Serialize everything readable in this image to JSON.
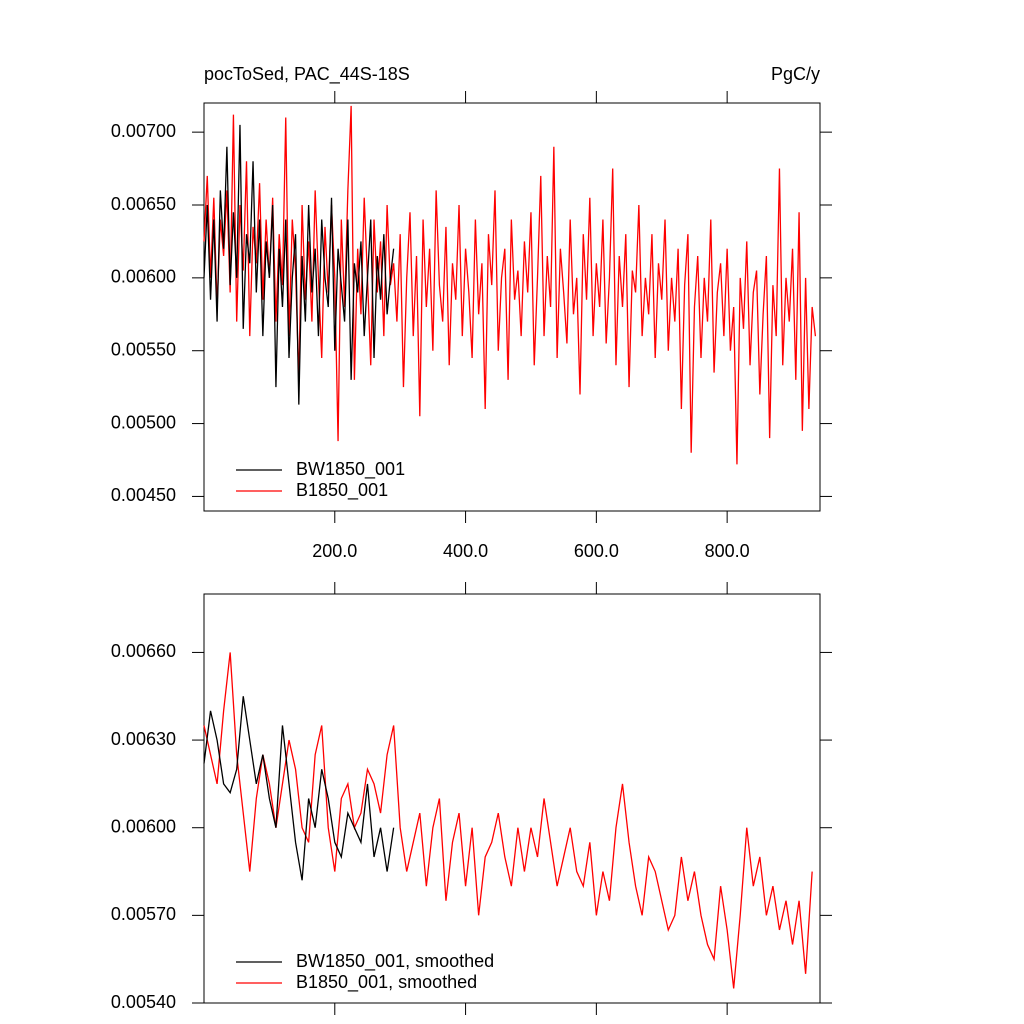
{
  "chart_data": [
    {
      "type": "line",
      "title": "pocToSed, PAC_44S-18S",
      "units": "PgC/y",
      "xlim": [
        0,
        942
      ],
      "ylim": [
        0.0044,
        0.0072
      ],
      "xticks": [
        {
          "value": 200,
          "label": "200.0"
        },
        {
          "value": 400,
          "label": "400.0"
        },
        {
          "value": 600,
          "label": "600.0"
        },
        {
          "value": 800,
          "label": "800.0"
        }
      ],
      "yticks": [
        {
          "value": 0.0045,
          "label": "0.00450"
        },
        {
          "value": 0.005,
          "label": "0.00500"
        },
        {
          "value": 0.0055,
          "label": "0.00550"
        },
        {
          "value": 0.006,
          "label": "0.00600"
        },
        {
          "value": 0.0065,
          "label": "0.00650"
        },
        {
          "value": 0.007,
          "label": "0.00700"
        }
      ],
      "show_xtick_labels": true,
      "legend": "lower left",
      "series": [
        {
          "name": "B1850_001",
          "color": "#ff0000",
          "x": [
            0,
            5,
            10,
            15,
            20,
            25,
            30,
            35,
            40,
            45,
            50,
            55,
            60,
            65,
            70,
            75,
            80,
            85,
            90,
            95,
            100,
            105,
            110,
            115,
            120,
            125,
            130,
            135,
            140,
            145,
            150,
            155,
            160,
            165,
            170,
            175,
            180,
            185,
            190,
            195,
            200,
            205,
            210,
            215,
            220,
            225,
            230,
            235,
            240,
            245,
            250,
            255,
            260,
            265,
            270,
            275,
            280,
            285,
            290,
            295,
            300,
            305,
            310,
            315,
            320,
            325,
            330,
            335,
            340,
            345,
            350,
            355,
            360,
            365,
            370,
            375,
            380,
            385,
            390,
            395,
            400,
            405,
            410,
            415,
            420,
            425,
            430,
            435,
            440,
            445,
            450,
            455,
            460,
            465,
            470,
            475,
            480,
            485,
            490,
            495,
            500,
            505,
            510,
            515,
            520,
            525,
            530,
            535,
            540,
            545,
            550,
            555,
            560,
            565,
            570,
            575,
            580,
            585,
            590,
            595,
            600,
            605,
            610,
            615,
            620,
            625,
            630,
            635,
            640,
            645,
            650,
            655,
            660,
            665,
            670,
            675,
            680,
            685,
            690,
            695,
            700,
            705,
            710,
            715,
            720,
            725,
            730,
            735,
            740,
            745,
            750,
            755,
            760,
            765,
            770,
            775,
            780,
            785,
            790,
            795,
            800,
            805,
            810,
            815,
            820,
            825,
            830,
            835,
            840,
            845,
            850,
            855,
            860,
            865,
            870,
            875,
            880,
            885,
            890,
            895,
            900,
            905,
            910,
            915,
            920,
            925,
            930,
            935
          ],
          "values": [
            0.00625,
            0.0067,
            0.006,
            0.00655,
            0.0058,
            0.0064,
            0.00615,
            0.0066,
            0.0059,
            0.00712,
            0.0057,
            0.0065,
            0.00605,
            0.0068,
            0.0056,
            0.00635,
            0.0061,
            0.00665,
            0.00585,
            0.0064,
            0.006,
            0.00655,
            0.0057,
            0.0063,
            0.00595,
            0.0071,
            0.0056,
            0.0064,
            0.00605,
            0.0053,
            0.0065,
            0.00585,
            0.00625,
            0.0057,
            0.0066,
            0.006,
            0.00545,
            0.00635,
            0.0059,
            0.0065,
            0.006,
            0.00488,
            0.0064,
            0.0058,
            0.0066,
            0.00718,
            0.0053,
            0.0062,
            0.00575,
            0.00655,
            0.006,
            0.0054,
            0.0064,
            0.0059,
            0.00625,
            0.0056,
            0.0065,
            0.00595,
            0.0061,
            0.0057,
            0.0063,
            0.00525,
            0.006,
            0.00645,
            0.0056,
            0.00615,
            0.00505,
            0.0064,
            0.0058,
            0.0062,
            0.0055,
            0.0066,
            0.00595,
            0.0057,
            0.00635,
            0.0054,
            0.0061,
            0.00585,
            0.0065,
            0.0056,
            0.0062,
            0.0059,
            0.00545,
            0.0064,
            0.00575,
            0.0061,
            0.0051,
            0.0063,
            0.00595,
            0.0066,
            0.0055,
            0.006,
            0.0062,
            0.0053,
            0.0064,
            0.00585,
            0.00605,
            0.0056,
            0.00625,
            0.0059,
            0.00645,
            0.0054,
            0.006,
            0.0067,
            0.0056,
            0.00615,
            0.0058,
            0.0069,
            0.00545,
            0.0062,
            0.0059,
            0.00555,
            0.0064,
            0.00575,
            0.006,
            0.0052,
            0.0063,
            0.00585,
            0.00655,
            0.0056,
            0.0061,
            0.0058,
            0.0064,
            0.00555,
            0.006,
            0.00675,
            0.0054,
            0.00615,
            0.0058,
            0.0063,
            0.00525,
            0.00605,
            0.0059,
            0.0065,
            0.0056,
            0.006,
            0.00575,
            0.0063,
            0.00545,
            0.0061,
            0.00585,
            0.0064,
            0.0055,
            0.006,
            0.0057,
            0.0062,
            0.0051,
            0.00595,
            0.0063,
            0.0048,
            0.0058,
            0.00615,
            0.00545,
            0.006,
            0.0057,
            0.0064,
            0.00535,
            0.0059,
            0.0061,
            0.0056,
            0.0062,
            0.0055,
            0.0058,
            0.00472,
            0.006,
            0.00565,
            0.00625,
            0.0054,
            0.0059,
            0.00605,
            0.0052,
            0.00575,
            0.00615,
            0.0049,
            0.00595,
            0.0056,
            0.00675,
            0.0054,
            0.006,
            0.0057,
            0.0062,
            0.0053,
            0.00645,
            0.00495,
            0.006,
            0.0051,
            0.0058,
            0.0056
          ]
        },
        {
          "name": "BW1850_001",
          "color": "#000000",
          "x": [
            0,
            5,
            10,
            15,
            20,
            25,
            30,
            35,
            40,
            45,
            50,
            55,
            60,
            65,
            70,
            75,
            80,
            85,
            90,
            95,
            100,
            105,
            110,
            115,
            120,
            125,
            130,
            135,
            140,
            145,
            150,
            155,
            160,
            165,
            170,
            175,
            180,
            185,
            190,
            195,
            200,
            205,
            210,
            215,
            220,
            225,
            230,
            235,
            240,
            245,
            250,
            255,
            260,
            265,
            270,
            275,
            280,
            285,
            290
          ],
          "values": [
            0.006,
            0.0065,
            0.00585,
            0.0064,
            0.0057,
            0.0066,
            0.0062,
            0.0069,
            0.00595,
            0.00645,
            0.006,
            0.00705,
            0.00565,
            0.0063,
            0.0061,
            0.0068,
            0.0059,
            0.0064,
            0.0056,
            0.00625,
            0.006,
            0.0065,
            0.00525,
            0.0062,
            0.0058,
            0.0064,
            0.00545,
            0.006,
            0.0063,
            0.00513,
            0.00615,
            0.0057,
            0.0065,
            0.0059,
            0.0062,
            0.0056,
            0.0064,
            0.006,
            0.0058,
            0.00655,
            0.0055,
            0.0062,
            0.00595,
            0.0057,
            0.0064,
            0.0053,
            0.0061,
            0.0059,
            0.00625,
            0.0056,
            0.006,
            0.0064,
            0.00545,
            0.00615,
            0.00585,
            0.0063,
            0.00575,
            0.006,
            0.0062
          ]
        }
      ]
    },
    {
      "type": "line",
      "xlim": [
        0,
        942
      ],
      "ylim": [
        0.0054,
        0.0068
      ],
      "xticks": [
        200,
        400,
        600,
        800
      ],
      "yticks": [
        {
          "value": 0.0054,
          "label": "0.00540"
        },
        {
          "value": 0.0057,
          "label": "0.00570"
        },
        {
          "value": 0.006,
          "label": "0.00600"
        },
        {
          "value": 0.0063,
          "label": "0.00630"
        },
        {
          "value": 0.0066,
          "label": "0.00660"
        }
      ],
      "show_xtick_labels": false,
      "legend": "lower left",
      "series": [
        {
          "name": "B1850_001, smoothed",
          "color": "#ff0000",
          "x": [
            0,
            10,
            20,
            30,
            40,
            50,
            60,
            70,
            80,
            90,
            100,
            110,
            120,
            130,
            140,
            150,
            160,
            170,
            180,
            190,
            200,
            210,
            220,
            230,
            240,
            250,
            260,
            270,
            280,
            290,
            300,
            310,
            320,
            330,
            340,
            350,
            360,
            370,
            380,
            390,
            400,
            410,
            420,
            430,
            440,
            450,
            460,
            470,
            480,
            490,
            500,
            510,
            520,
            530,
            540,
            550,
            560,
            570,
            580,
            590,
            600,
            610,
            620,
            630,
            640,
            650,
            660,
            670,
            680,
            690,
            700,
            710,
            720,
            730,
            740,
            750,
            760,
            770,
            780,
            790,
            800,
            810,
            820,
            830,
            840,
            850,
            860,
            870,
            880,
            890,
            900,
            910,
            920,
            930
          ],
          "values": [
            0.00635,
            0.00625,
            0.00615,
            0.0064,
            0.0066,
            0.00625,
            0.00605,
            0.00585,
            0.0061,
            0.00625,
            0.00615,
            0.006,
            0.00615,
            0.0063,
            0.0062,
            0.006,
            0.00595,
            0.00625,
            0.00635,
            0.006,
            0.00585,
            0.0061,
            0.00615,
            0.006,
            0.00605,
            0.0062,
            0.00615,
            0.00605,
            0.00625,
            0.00635,
            0.006,
            0.00585,
            0.00595,
            0.00605,
            0.0058,
            0.006,
            0.0061,
            0.00575,
            0.00595,
            0.00605,
            0.0058,
            0.006,
            0.0057,
            0.0059,
            0.00595,
            0.00605,
            0.0059,
            0.0058,
            0.006,
            0.00585,
            0.006,
            0.0059,
            0.0061,
            0.00595,
            0.0058,
            0.0059,
            0.006,
            0.00585,
            0.0058,
            0.00595,
            0.0057,
            0.00585,
            0.00575,
            0.006,
            0.00615,
            0.00595,
            0.0058,
            0.0057,
            0.0059,
            0.00585,
            0.00575,
            0.00565,
            0.0057,
            0.0059,
            0.00575,
            0.00585,
            0.0057,
            0.0056,
            0.00555,
            0.0058,
            0.00565,
            0.00545,
            0.0057,
            0.006,
            0.0058,
            0.0059,
            0.0057,
            0.0058,
            0.00565,
            0.00575,
            0.0056,
            0.00575,
            0.0055,
            0.00585
          ]
        },
        {
          "name": "BW1850_001, smoothed",
          "color": "#000000",
          "x": [
            0,
            10,
            20,
            30,
            40,
            50,
            60,
            70,
            80,
            90,
            100,
            110,
            120,
            130,
            140,
            150,
            160,
            170,
            180,
            190,
            200,
            210,
            220,
            230,
            240,
            250,
            260,
            270,
            280,
            290
          ],
          "values": [
            0.00622,
            0.0064,
            0.0063,
            0.00615,
            0.00612,
            0.0062,
            0.00645,
            0.0063,
            0.00615,
            0.00625,
            0.0061,
            0.006,
            0.00635,
            0.00615,
            0.00595,
            0.00582,
            0.0061,
            0.006,
            0.0062,
            0.0061,
            0.00595,
            0.0059,
            0.00605,
            0.006,
            0.00595,
            0.00615,
            0.0059,
            0.006,
            0.00585,
            0.006
          ]
        }
      ]
    }
  ]
}
